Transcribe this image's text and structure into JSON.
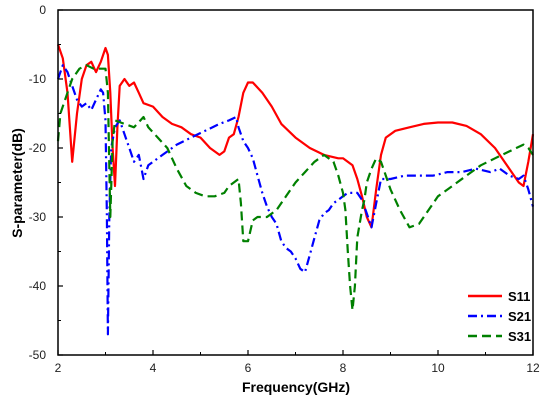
{
  "chart_data": {
    "type": "line",
    "xlabel": "Frequency(GHz)",
    "ylabel": "S-parameter(dB)",
    "xlim": [
      2,
      12
    ],
    "ylim": [
      -50,
      0
    ],
    "xticks": [
      2,
      4,
      6,
      8,
      10,
      12
    ],
    "yticks": [
      0,
      -10,
      -20,
      -30,
      -40,
      -50
    ],
    "grid": false,
    "legend_position": "bottom-right",
    "series": [
      {
        "name": "S11",
        "color": "#ff0000",
        "dash": "solid",
        "points": [
          [
            2.0,
            -5.0
          ],
          [
            2.1,
            -7.0
          ],
          [
            2.2,
            -12.0
          ],
          [
            2.3,
            -22.0
          ],
          [
            2.4,
            -15.0
          ],
          [
            2.5,
            -10.0
          ],
          [
            2.6,
            -8.0
          ],
          [
            2.7,
            -7.5
          ],
          [
            2.8,
            -9.0
          ],
          [
            2.9,
            -7.5
          ],
          [
            3.0,
            -5.5
          ],
          [
            3.05,
            -6.5
          ],
          [
            3.1,
            -12.0
          ],
          [
            3.15,
            -20.0
          ],
          [
            3.2,
            -25.5
          ],
          [
            3.25,
            -17.0
          ],
          [
            3.3,
            -11.0
          ],
          [
            3.4,
            -10.0
          ],
          [
            3.5,
            -11.0
          ],
          [
            3.6,
            -10.5
          ],
          [
            3.7,
            -12.0
          ],
          [
            3.8,
            -13.5
          ],
          [
            4.0,
            -14.0
          ],
          [
            4.2,
            -15.5
          ],
          [
            4.4,
            -16.5
          ],
          [
            4.6,
            -17.0
          ],
          [
            4.8,
            -18.0
          ],
          [
            5.0,
            -18.5
          ],
          [
            5.2,
            -20.0
          ],
          [
            5.4,
            -21.0
          ],
          [
            5.5,
            -20.5
          ],
          [
            5.6,
            -18.5
          ],
          [
            5.7,
            -18.0
          ],
          [
            5.8,
            -15.5
          ],
          [
            5.9,
            -12.0
          ],
          [
            6.0,
            -10.5
          ],
          [
            6.1,
            -10.5
          ],
          [
            6.3,
            -12.0
          ],
          [
            6.5,
            -14.0
          ],
          [
            6.7,
            -16.5
          ],
          [
            7.0,
            -18.5
          ],
          [
            7.3,
            -20.0
          ],
          [
            7.6,
            -21.0
          ],
          [
            7.9,
            -21.5
          ],
          [
            8.0,
            -21.5
          ],
          [
            8.2,
            -22.5
          ],
          [
            8.3,
            -24.5
          ],
          [
            8.4,
            -27.0
          ],
          [
            8.5,
            -30.0
          ],
          [
            8.6,
            -31.5
          ],
          [
            8.7,
            -26.0
          ],
          [
            8.8,
            -21.0
          ],
          [
            8.9,
            -18.5
          ],
          [
            9.1,
            -17.5
          ],
          [
            9.4,
            -17.0
          ],
          [
            9.7,
            -16.5
          ],
          [
            10.0,
            -16.3
          ],
          [
            10.3,
            -16.3
          ],
          [
            10.6,
            -16.8
          ],
          [
            10.9,
            -18.0
          ],
          [
            11.2,
            -20.0
          ],
          [
            11.5,
            -23.0
          ],
          [
            11.7,
            -25.0
          ],
          [
            11.8,
            -25.5
          ],
          [
            11.9,
            -22.0
          ],
          [
            12.0,
            -18.0
          ]
        ]
      },
      {
        "name": "S21",
        "color": "#0000ff",
        "dash": "dashdot",
        "points": [
          [
            2.0,
            -10.0
          ],
          [
            2.1,
            -8.0
          ],
          [
            2.2,
            -9.0
          ],
          [
            2.3,
            -11.0
          ],
          [
            2.4,
            -13.0
          ],
          [
            2.5,
            -14.0
          ],
          [
            2.6,
            -13.5
          ],
          [
            2.7,
            -14.5
          ],
          [
            2.8,
            -13.0
          ],
          [
            2.9,
            -11.5
          ],
          [
            2.95,
            -12.0
          ],
          [
            3.0,
            -16.0
          ],
          [
            3.03,
            -30.0
          ],
          [
            3.05,
            -47.0
          ],
          [
            3.08,
            -30.0
          ],
          [
            3.12,
            -20.0
          ],
          [
            3.2,
            -17.0
          ],
          [
            3.3,
            -16.0
          ],
          [
            3.4,
            -18.0
          ],
          [
            3.5,
            -20.0
          ],
          [
            3.6,
            -22.0
          ],
          [
            3.7,
            -21.0
          ],
          [
            3.8,
            -24.5
          ],
          [
            3.9,
            -22.5
          ],
          [
            4.0,
            -22.0
          ],
          [
            4.2,
            -21.0
          ],
          [
            4.5,
            -19.5
          ],
          [
            4.8,
            -18.5
          ],
          [
            5.1,
            -17.5
          ],
          [
            5.4,
            -16.5
          ],
          [
            5.6,
            -16.0
          ],
          [
            5.75,
            -15.5
          ],
          [
            5.8,
            -17.0
          ],
          [
            5.9,
            -19.0
          ],
          [
            6.0,
            -20.0
          ],
          [
            6.1,
            -21.5
          ],
          [
            6.2,
            -24.0
          ],
          [
            6.3,
            -26.5
          ],
          [
            6.4,
            -28.5
          ],
          [
            6.5,
            -30.0
          ],
          [
            6.6,
            -31.0
          ],
          [
            6.7,
            -33.5
          ],
          [
            6.8,
            -34.5
          ],
          [
            6.9,
            -35.0
          ],
          [
            7.0,
            -36.0
          ],
          [
            7.1,
            -37.5
          ],
          [
            7.2,
            -38.0
          ],
          [
            7.3,
            -35.5
          ],
          [
            7.4,
            -33.0
          ],
          [
            7.5,
            -30.5
          ],
          [
            7.6,
            -29.5
          ],
          [
            7.7,
            -29.0
          ],
          [
            7.8,
            -28.0
          ],
          [
            7.9,
            -27.5
          ],
          [
            8.0,
            -27.0
          ],
          [
            8.1,
            -26.5
          ],
          [
            8.3,
            -26.5
          ],
          [
            8.4,
            -27.5
          ],
          [
            8.5,
            -29.5
          ],
          [
            8.6,
            -31.5
          ],
          [
            8.7,
            -28.0
          ],
          [
            8.8,
            -24.5
          ],
          [
            9.0,
            -24.5
          ],
          [
            9.3,
            -24.0
          ],
          [
            9.6,
            -24.0
          ],
          [
            9.9,
            -24.0
          ],
          [
            10.2,
            -23.5
          ],
          [
            10.5,
            -23.5
          ],
          [
            10.8,
            -23.0
          ],
          [
            11.1,
            -23.5
          ],
          [
            11.3,
            -23.0
          ],
          [
            11.5,
            -24.0
          ],
          [
            11.7,
            -24.5
          ],
          [
            11.8,
            -24.0
          ],
          [
            11.9,
            -26.0
          ],
          [
            12.0,
            -28.5
          ]
        ]
      },
      {
        "name": "S31",
        "color": "#008000",
        "dash": "dash",
        "points": [
          [
            2.0,
            -19.0
          ],
          [
            2.05,
            -15.0
          ],
          [
            2.15,
            -13.0
          ],
          [
            2.3,
            -10.0
          ],
          [
            2.45,
            -8.5
          ],
          [
            2.6,
            -8.0
          ],
          [
            2.75,
            -8.5
          ],
          [
            2.9,
            -8.5
          ],
          [
            3.0,
            -8.5
          ],
          [
            3.05,
            -12.0
          ],
          [
            3.1,
            -30.0
          ],
          [
            3.15,
            -19.0
          ],
          [
            3.2,
            -16.0
          ],
          [
            3.4,
            -16.5
          ],
          [
            3.6,
            -17.0
          ],
          [
            3.8,
            -15.5
          ],
          [
            3.9,
            -17.0
          ],
          [
            4.1,
            -18.5
          ],
          [
            4.3,
            -20.0
          ],
          [
            4.5,
            -23.0
          ],
          [
            4.7,
            -25.5
          ],
          [
            4.9,
            -26.5
          ],
          [
            5.1,
            -27.0
          ],
          [
            5.3,
            -27.0
          ],
          [
            5.5,
            -26.5
          ],
          [
            5.6,
            -25.5
          ],
          [
            5.7,
            -25.0
          ],
          [
            5.8,
            -24.5
          ],
          [
            5.85,
            -28.0
          ],
          [
            5.9,
            -33.5
          ],
          [
            6.0,
            -33.5
          ],
          [
            6.1,
            -30.5
          ],
          [
            6.2,
            -30.0
          ],
          [
            6.4,
            -30.0
          ],
          [
            6.6,
            -29.0
          ],
          [
            6.8,
            -27.0
          ],
          [
            7.0,
            -25.0
          ],
          [
            7.2,
            -23.5
          ],
          [
            7.4,
            -22.0
          ],
          [
            7.6,
            -21.0
          ],
          [
            7.8,
            -22.0
          ],
          [
            7.9,
            -24.0
          ],
          [
            8.0,
            -26.5
          ],
          [
            8.05,
            -29.0
          ],
          [
            8.1,
            -35.0
          ],
          [
            8.15,
            -40.0
          ],
          [
            8.2,
            -43.5
          ],
          [
            8.25,
            -40.0
          ],
          [
            8.3,
            -33.0
          ],
          [
            8.4,
            -29.0
          ],
          [
            8.45,
            -27.5
          ],
          [
            8.5,
            -25.0
          ],
          [
            8.6,
            -23.0
          ],
          [
            8.7,
            -21.5
          ],
          [
            8.8,
            -22.0
          ],
          [
            8.9,
            -24.0
          ],
          [
            9.0,
            -26.0
          ],
          [
            9.2,
            -29.0
          ],
          [
            9.4,
            -31.5
          ],
          [
            9.6,
            -31.0
          ],
          [
            9.8,
            -29.0
          ],
          [
            10.0,
            -27.0
          ],
          [
            10.3,
            -25.5
          ],
          [
            10.6,
            -24.0
          ],
          [
            10.9,
            -22.5
          ],
          [
            11.2,
            -21.5
          ],
          [
            11.5,
            -20.5
          ],
          [
            11.8,
            -19.5
          ],
          [
            11.9,
            -20.0
          ],
          [
            12.0,
            -21.0
          ]
        ]
      }
    ]
  }
}
